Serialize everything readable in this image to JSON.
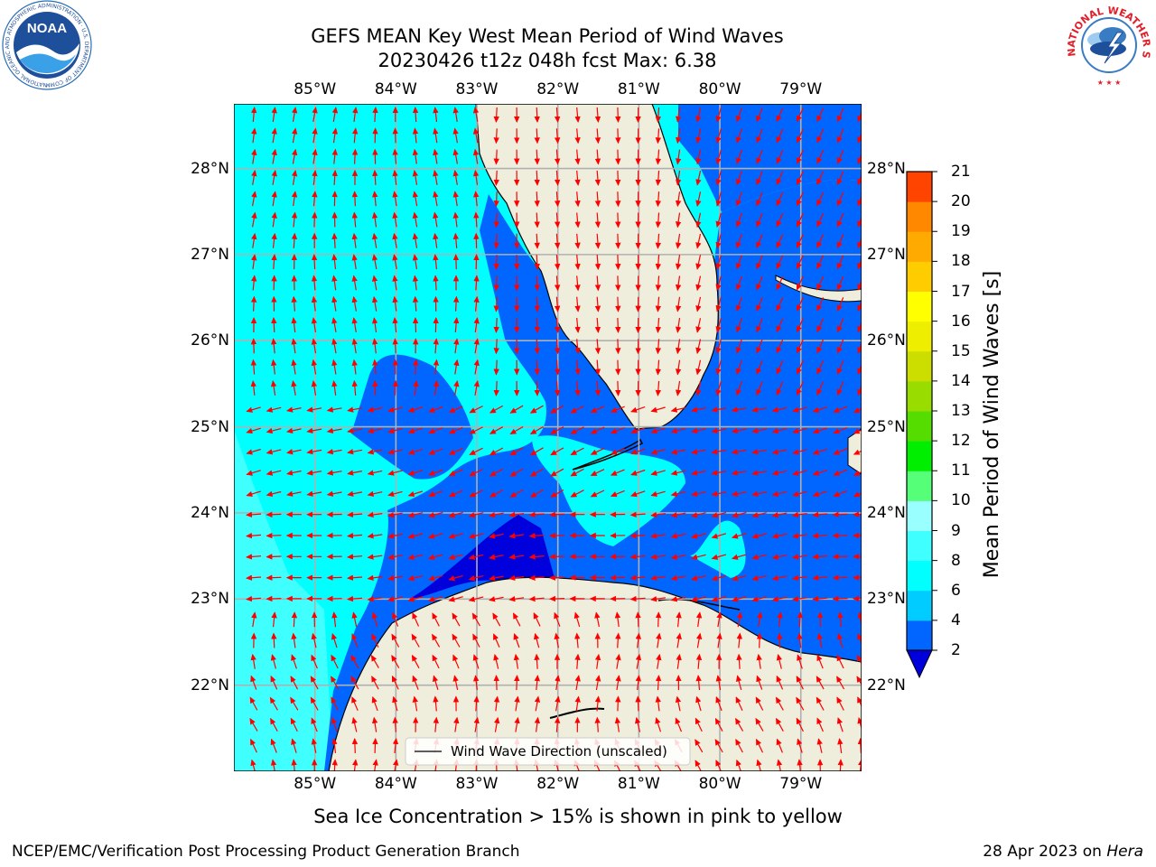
{
  "header": {
    "title_line1": "GEFS MEAN Key West Mean Period of Wind Waves",
    "title_line2": "20230426 t12z 048h fcst   Max: 6.38"
  },
  "logos": {
    "noaa_text": "NOAA",
    "noaa_ring_text": "NATIONAL OCEANIC AND ATMOSPHERIC ADMINISTRATION · U.S. DEPARTMENT OF COMMERCE",
    "nws_ring_text": "NATIONAL WEATHER SERVICE"
  },
  "map": {
    "lat_labels": [
      "28°N",
      "27°N",
      "26°N",
      "25°N",
      "24°N",
      "23°N",
      "22°N"
    ],
    "lon_labels": [
      "85°W",
      "84°W",
      "83°W",
      "82°W",
      "81°W",
      "80°W",
      "79°W"
    ],
    "legend_label": "Wind Wave Direction (unscaled)",
    "extent": {
      "lon_min": -86.0,
      "lon_max": -78.25,
      "lat_min": 21.0,
      "lat_max": 28.75
    }
  },
  "colorbar": {
    "label": "Mean Period of Wind Waves [s]",
    "ticks": [
      "2",
      "4",
      "6",
      "8",
      "9",
      "10",
      "11",
      "12",
      "13",
      "14",
      "15",
      "16",
      "17",
      "18",
      "19",
      "20",
      "21"
    ],
    "colors": [
      "#0066ff",
      "#00ccff",
      "#00ffff",
      "#40ffff",
      "#99ffff",
      "#55ff77",
      "#00ee00",
      "#55dd00",
      "#99dd00",
      "#ccdd00",
      "#eeee00",
      "#ffff00",
      "#ffcc00",
      "#ffaa00",
      "#ff8800",
      "#ff4400",
      "#ff0000"
    ],
    "under_color": "#0000dd"
  },
  "colors": {
    "land": "#efeedd",
    "coast": "#000000",
    "grid": "#b0b0b0",
    "arrow": "#ff0000"
  },
  "footer": {
    "note": "Sea Ice Concentration > 15% is shown in pink to yellow",
    "credit": "NCEP/EMC/Verification Post Processing Product Generation Branch",
    "date": "28 Apr 2023 on ",
    "host": "Hera"
  }
}
